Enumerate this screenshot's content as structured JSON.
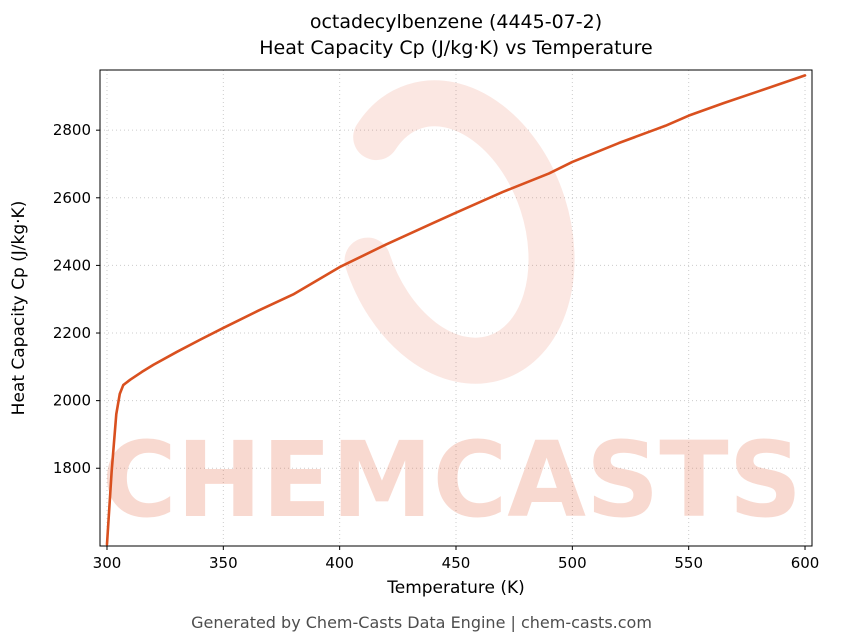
{
  "header": {
    "title_line1": "octadecylbenzene (4445-07-2)",
    "title_line2": "Heat Capacity Cp (J/kg·K) vs Temperature"
  },
  "footer": {
    "text": "Generated by Chem-Casts Data Engine | chem-casts.com"
  },
  "watermark": {
    "text": "CHEMCASTS",
    "color": "#e0481c",
    "text_opacity": 0.2,
    "logo_opacity": 0.13
  },
  "chart_data": {
    "type": "line",
    "title": "octadecylbenzene (4445-07-2) — Heat Capacity Cp (J/kg·K) vs Temperature",
    "xlabel": "Temperature (K)",
    "ylabel": "Heat Capacity Cp (J/kg·K)",
    "xlim": [
      297,
      603
    ],
    "ylim": [
      1570,
      2978
    ],
    "xticks": [
      300,
      350,
      400,
      450,
      500,
      550,
      600
    ],
    "yticks": [
      1800,
      2000,
      2200,
      2400,
      2600,
      2800
    ],
    "grid": true,
    "grid_color": "#cccccc",
    "line_color": "#d9501f",
    "spine_color": "#000000",
    "legend_position": "none",
    "series": [
      {
        "name": "Heat Capacity Cp",
        "x": [
          300,
          302,
          304,
          305.5,
          307,
          310,
          315,
          320,
          330,
          340,
          350,
          365,
          380,
          400,
          420,
          440,
          450,
          470,
          490,
          500,
          520,
          540,
          550,
          565,
          580,
          600
        ],
        "y": [
          1575,
          1790,
          1960,
          2020,
          2046,
          2062,
          2085,
          2106,
          2144,
          2180,
          2215,
          2266,
          2314,
          2395,
          2462,
          2525,
          2556,
          2617,
          2672,
          2706,
          2762,
          2813,
          2843,
          2880,
          2915,
          2962
        ]
      }
    ]
  }
}
